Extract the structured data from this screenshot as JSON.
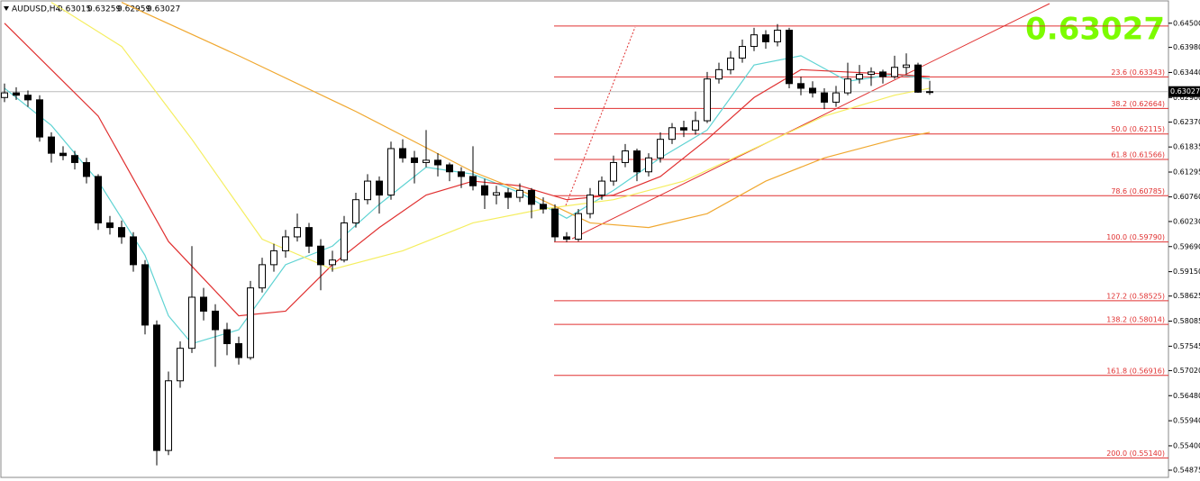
{
  "chart_data": {
    "type": "candlestick",
    "title": "AUDUSD,H4",
    "last_price": 0.63027,
    "ylim": [
      0.5472,
      0.65
    ],
    "yticks": [
      {
        "value": 0.645,
        "label": "0.64500"
      },
      {
        "value": 0.6398,
        "label": "0.63980"
      },
      {
        "value": 0.6344,
        "label": "0.63440"
      },
      {
        "value": 0.629,
        "label": "0.62900"
      },
      {
        "value": 0.6237,
        "label": "0.62370"
      },
      0.61835,
      0.61295,
      {
        "value": 0.6076,
        "label": "0.60760"
      },
      {
        "value": 0.6023,
        "label": "0.60230"
      },
      {
        "value": 0.5969,
        "label": "0.59690"
      },
      {
        "value": 0.5915,
        "label": "0.59150"
      },
      0.58625,
      0.58085,
      0.57545,
      {
        "value": 0.5702,
        "label": "0.57020"
      },
      {
        "value": 0.5648,
        "label": "0.56480"
      },
      {
        "value": 0.5594,
        "label": "0.55940"
      },
      {
        "value": 0.554,
        "label": "0.55400"
      },
      0.54875
    ],
    "fib_high": 0.6444,
    "fib_levels": [
      {
        "value": 0.63343,
        "label": "23.6 (0.63343)"
      },
      {
        "value": 0.62664,
        "label": "38.2 (0.62664)"
      },
      {
        "value": 0.62115,
        "label": "50.0 (0.62115)"
      },
      {
        "value": 0.61566,
        "label": "61.8 (0.61566)"
      },
      {
        "value": 0.60785,
        "label": "78.6 (0.60785)"
      },
      {
        "value": 0.5979,
        "label": "100.0 (0.59790)"
      },
      {
        "value": 0.58525,
        "label": "127.2 (0.58525)"
      },
      {
        "value": 0.58014,
        "label": "138.2 (0.58014)"
      },
      {
        "value": 0.56916,
        "label": "161.8 (0.56916)"
      },
      {
        "value": 0.5514,
        "label": "200.0 (0.55140)"
      }
    ],
    "candles": [
      [
        0.629,
        0.632,
        0.628,
        0.63
      ],
      [
        0.63,
        0.6312,
        0.6285,
        0.6295
      ],
      [
        0.6295,
        0.6305,
        0.627,
        0.6285
      ],
      [
        0.6285,
        0.6295,
        0.6195,
        0.6205
      ],
      [
        0.6205,
        0.6215,
        0.615,
        0.617
      ],
      [
        0.617,
        0.6185,
        0.6155,
        0.6165
      ],
      [
        0.6165,
        0.6175,
        0.6135,
        0.615
      ],
      [
        0.615,
        0.616,
        0.6105,
        0.612
      ],
      [
        0.612,
        0.6125,
        0.6005,
        0.602
      ],
      [
        0.602,
        0.6035,
        0.5995,
        0.601
      ],
      [
        0.601,
        0.6025,
        0.5975,
        0.599
      ],
      [
        0.599,
        0.6,
        0.5915,
        0.593
      ],
      [
        0.593,
        0.594,
        0.578,
        0.58
      ],
      [
        0.58,
        0.581,
        0.5498,
        0.553
      ],
      [
        0.553,
        0.57,
        0.552,
        0.568
      ],
      [
        0.568,
        0.5765,
        0.5665,
        0.575
      ],
      [
        0.575,
        0.597,
        0.574,
        0.586
      ],
      [
        0.586,
        0.588,
        0.581,
        0.583
      ],
      [
        0.583,
        0.5845,
        0.571,
        0.579
      ],
      [
        0.579,
        0.5805,
        0.5735,
        0.576
      ],
      [
        0.576,
        0.5775,
        0.5715,
        0.573
      ],
      [
        0.573,
        0.5895,
        0.5725,
        0.588
      ],
      [
        0.588,
        0.5945,
        0.587,
        0.593
      ],
      [
        0.593,
        0.5975,
        0.5915,
        0.596
      ],
      [
        0.596,
        0.6005,
        0.5945,
        0.599
      ],
      [
        0.599,
        0.604,
        0.598,
        0.601
      ],
      [
        0.601,
        0.602,
        0.5955,
        0.597
      ],
      [
        0.597,
        0.5985,
        0.5875,
        0.593
      ],
      [
        0.593,
        0.596,
        0.5915,
        0.594
      ],
      [
        0.594,
        0.6035,
        0.5935,
        0.602
      ],
      [
        0.602,
        0.6085,
        0.601,
        0.607
      ],
      [
        0.607,
        0.6125,
        0.606,
        0.611
      ],
      [
        0.611,
        0.612,
        0.604,
        0.608
      ],
      [
        0.608,
        0.6195,
        0.607,
        0.618
      ],
      [
        0.618,
        0.62,
        0.615,
        0.616
      ],
      [
        0.616,
        0.6175,
        0.6105,
        0.615
      ],
      [
        0.615,
        0.622,
        0.614,
        0.6155
      ],
      [
        0.6155,
        0.617,
        0.612,
        0.6145
      ],
      [
        0.6145,
        0.615,
        0.611,
        0.613
      ],
      [
        0.613,
        0.614,
        0.6095,
        0.612
      ],
      [
        0.612,
        0.6185,
        0.609,
        0.61
      ],
      [
        0.61,
        0.6115,
        0.605,
        0.608
      ],
      [
        0.608,
        0.61,
        0.606,
        0.6085
      ],
      [
        0.6085,
        0.6095,
        0.605,
        0.6075
      ],
      [
        0.6075,
        0.6105,
        0.6065,
        0.609
      ],
      [
        0.609,
        0.6095,
        0.603,
        0.606
      ],
      [
        0.606,
        0.6075,
        0.604,
        0.605
      ],
      [
        0.605,
        0.606,
        0.598,
        0.599
      ],
      [
        0.599,
        0.6,
        0.5979,
        0.5985
      ],
      [
        0.5985,
        0.605,
        0.598,
        0.604
      ],
      [
        0.604,
        0.6095,
        0.603,
        0.608
      ],
      [
        0.608,
        0.612,
        0.607,
        0.611
      ],
      [
        0.611,
        0.6165,
        0.61,
        0.615
      ],
      [
        0.615,
        0.619,
        0.614,
        0.6175
      ],
      [
        0.6175,
        0.618,
        0.611,
        0.613
      ],
      [
        0.613,
        0.617,
        0.612,
        0.616
      ],
      [
        0.616,
        0.6215,
        0.615,
        0.62
      ],
      [
        0.62,
        0.6235,
        0.619,
        0.6225
      ],
      [
        0.6225,
        0.624,
        0.6205,
        0.622
      ],
      [
        0.622,
        0.626,
        0.621,
        0.624
      ],
      [
        0.624,
        0.6345,
        0.6235,
        0.633
      ],
      [
        0.633,
        0.6365,
        0.632,
        0.635
      ],
      [
        0.635,
        0.639,
        0.634,
        0.6375
      ],
      [
        0.6375,
        0.6415,
        0.6365,
        0.64
      ],
      [
        0.64,
        0.644,
        0.639,
        0.6425
      ],
      [
        0.6425,
        0.6435,
        0.6395,
        0.641
      ],
      [
        0.641,
        0.6448,
        0.64,
        0.6435
      ],
      [
        0.6435,
        0.644,
        0.631,
        0.632
      ],
      [
        0.632,
        0.6335,
        0.6295,
        0.631
      ],
      [
        0.631,
        0.6325,
        0.629,
        0.63
      ],
      [
        0.63,
        0.631,
        0.6265,
        0.628
      ],
      [
        0.628,
        0.6315,
        0.627,
        0.63
      ],
      [
        0.63,
        0.6365,
        0.6295,
        0.633
      ],
      [
        0.633,
        0.636,
        0.632,
        0.634
      ],
      [
        0.634,
        0.6355,
        0.6315,
        0.6345
      ],
      [
        0.6345,
        0.635,
        0.632,
        0.6335
      ],
      [
        0.6335,
        0.638,
        0.633,
        0.6355
      ],
      [
        0.6355,
        0.6385,
        0.634,
        0.636
      ],
      [
        0.636,
        0.6365,
        0.63,
        0.63015
      ],
      [
        0.63015,
        0.63259,
        0.62959,
        0.63027
      ]
    ],
    "series": [
      {
        "color": "#5fd3d3",
        "x": [
          0,
          4,
          8,
          12,
          14,
          16,
          20,
          24,
          28,
          32,
          36,
          40,
          44,
          48,
          52,
          56,
          60,
          64,
          68,
          72,
          76,
          79
        ],
        "values": [
          0.631,
          0.623,
          0.611,
          0.595,
          0.582,
          0.576,
          0.579,
          0.593,
          0.597,
          0.606,
          0.614,
          0.6125,
          0.6085,
          0.603,
          0.609,
          0.616,
          0.622,
          0.636,
          0.638,
          0.6325,
          0.634,
          0.633
        ]
      },
      {
        "color": "#e03030",
        "x": [
          0,
          8,
          14,
          20,
          24,
          28,
          32,
          36,
          40,
          44,
          48,
          52,
          56,
          60,
          64,
          68,
          72,
          76,
          79
        ],
        "values": [
          0.645,
          0.625,
          0.598,
          0.582,
          0.583,
          0.593,
          0.601,
          0.608,
          0.611,
          0.61,
          0.607,
          0.608,
          0.612,
          0.62,
          0.629,
          0.635,
          0.6345,
          0.634,
          0.6335
        ]
      },
      {
        "color": "#f5ee60",
        "x": [
          4,
          10,
          16,
          22,
          28,
          34,
          40,
          46,
          52,
          58,
          64,
          70,
          76,
          79
        ],
        "values": [
          0.6495,
          0.64,
          0.62,
          0.5985,
          0.592,
          0.596,
          0.602,
          0.605,
          0.607,
          0.611,
          0.618,
          0.625,
          0.6295,
          0.631
        ]
      },
      {
        "color": "#f0a830",
        "x": [
          10,
          20,
          30,
          40,
          45,
          50,
          55,
          60,
          65,
          70,
          76,
          79
        ],
        "values": [
          0.6495,
          0.638,
          0.626,
          0.613,
          0.608,
          0.602,
          0.601,
          0.604,
          0.611,
          0.616,
          0.62,
          0.6215
        ]
      }
    ]
  }
}
